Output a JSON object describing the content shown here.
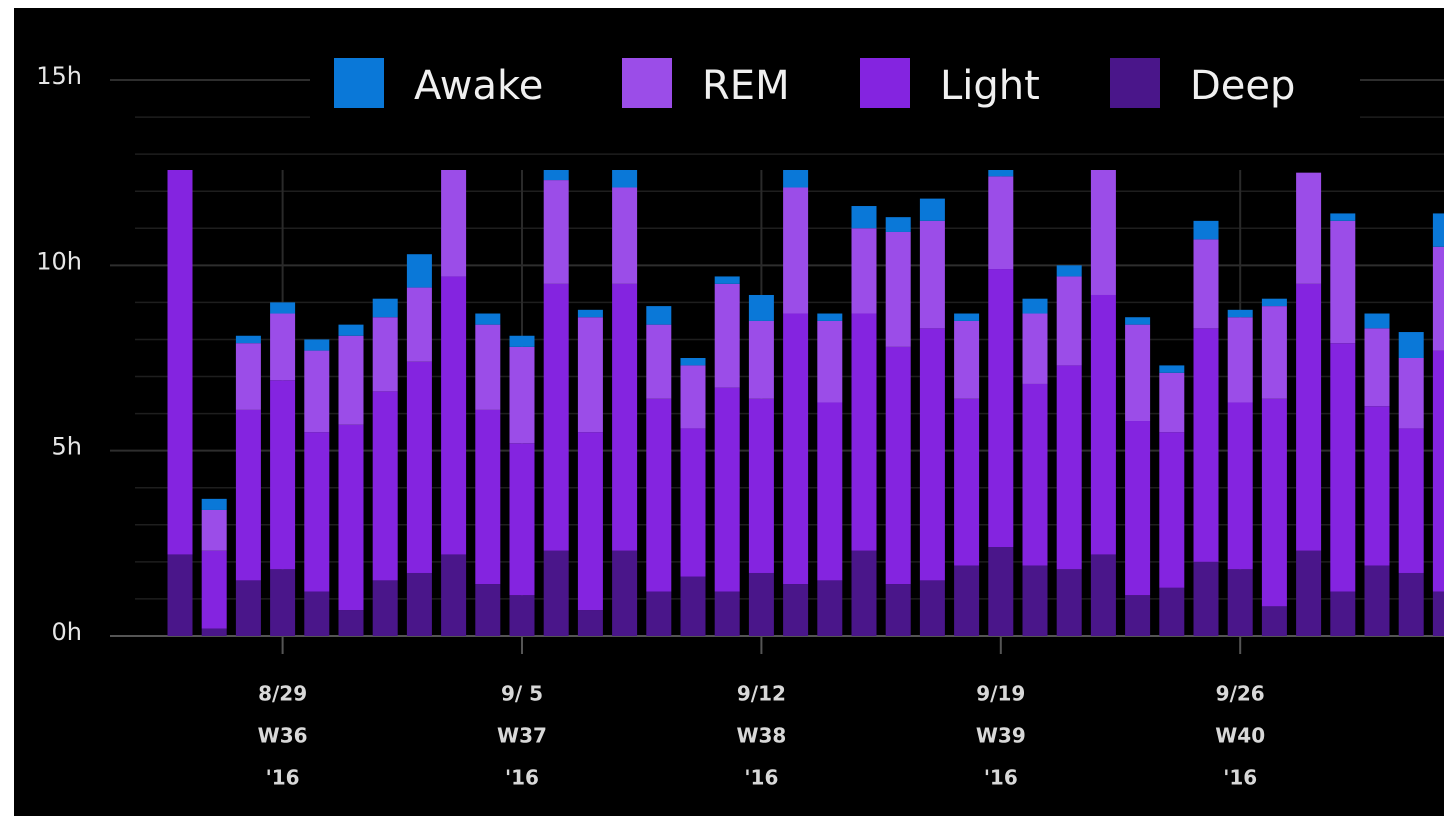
{
  "chart_data": {
    "type": "stacked_bar",
    "categories": [
      null,
      null,
      null,
      [
        "8/29",
        "W36",
        "'16"
      ],
      null,
      null,
      null,
      null,
      null,
      null,
      [
        "9/ 5",
        "W37",
        "'16"
      ],
      null,
      null,
      null,
      null,
      null,
      null,
      [
        "9/12",
        "W38",
        "'16"
      ],
      null,
      null,
      null,
      null,
      null,
      null,
      [
        "9/19",
        "W39",
        "'16"
      ],
      null,
      null,
      null,
      null,
      null,
      null,
      [
        "9/26",
        "W40",
        "'16"
      ],
      null,
      null,
      null,
      null,
      null,
      null
    ],
    "series": [
      {
        "name": "Deep",
        "color": "#4a168a",
        "values": [
          2.2,
          0.2,
          1.5,
          1.8,
          1.2,
          0.7,
          1.5,
          1.7,
          2.2,
          1.4,
          1.1,
          2.3,
          0.7,
          2.3,
          1.2,
          1.6,
          1.2,
          1.7,
          1.4,
          1.5,
          2.3,
          1.4,
          1.5,
          1.9,
          2.4,
          1.9,
          1.8,
          2.2,
          1.1,
          1.3,
          2.0,
          1.8,
          0.8,
          2.3,
          1.2,
          1.9,
          1.7,
          1.2
        ]
      },
      {
        "name": "Light",
        "color": "#8424e0",
        "values": [
          10.4,
          2.1,
          4.6,
          5.1,
          4.3,
          5.0,
          5.1,
          5.7,
          7.5,
          4.7,
          4.1,
          7.2,
          4.8,
          7.2,
          5.2,
          4.0,
          5.5,
          4.7,
          7.3,
          4.8,
          6.4,
          6.4,
          6.8,
          4.5,
          7.5,
          4.9,
          5.5,
          7.0,
          4.7,
          4.2,
          6.3,
          4.5,
          5.6,
          7.2,
          6.7,
          4.3,
          3.9,
          6.5
        ]
      },
      {
        "name": "REM",
        "color": "#9b4de8",
        "values": [
          0,
          1.1,
          1.8,
          1.8,
          2.2,
          2.4,
          2.0,
          2.0,
          2.9,
          2.3,
          2.6,
          2.8,
          3.1,
          2.6,
          2.0,
          1.7,
          2.8,
          2.1,
          3.4,
          2.2,
          2.3,
          3.1,
          2.9,
          2.1,
          2.5,
          1.9,
          2.4,
          3.4,
          2.6,
          1.6,
          2.4,
          2.3,
          2.5,
          3.0,
          3.3,
          2.1,
          1.9,
          2.8
        ]
      },
      {
        "name": "Awake",
        "color": "#0a78d8",
        "values": [
          0,
          0.3,
          0.2,
          0.3,
          0.3,
          0.3,
          0.5,
          0.9,
          0.1,
          0.3,
          0.3,
          0.3,
          0.2,
          0.5,
          0.5,
          0.2,
          0.2,
          0.7,
          0.5,
          0.2,
          0.6,
          0.4,
          0.6,
          0.2,
          0.2,
          0.4,
          0.3,
          0,
          0.2,
          0.2,
          0.5,
          0.2,
          0.2,
          0,
          0.2,
          0.4,
          0.7,
          0.9
        ]
      }
    ],
    "legend_order": [
      "Awake",
      "REM",
      "Light",
      "Deep"
    ],
    "ylim": [
      0,
      15
    ],
    "yticks": [
      {
        "value": 0,
        "label": "0h"
      },
      {
        "value": 5,
        "label": "5h"
      },
      {
        "value": 10,
        "label": "10h"
      },
      {
        "value": 15,
        "label": "15h"
      }
    ],
    "yticks_minor": [
      1,
      2,
      3,
      4,
      6,
      7,
      8,
      9,
      11,
      12,
      13,
      14
    ],
    "grid": true
  }
}
